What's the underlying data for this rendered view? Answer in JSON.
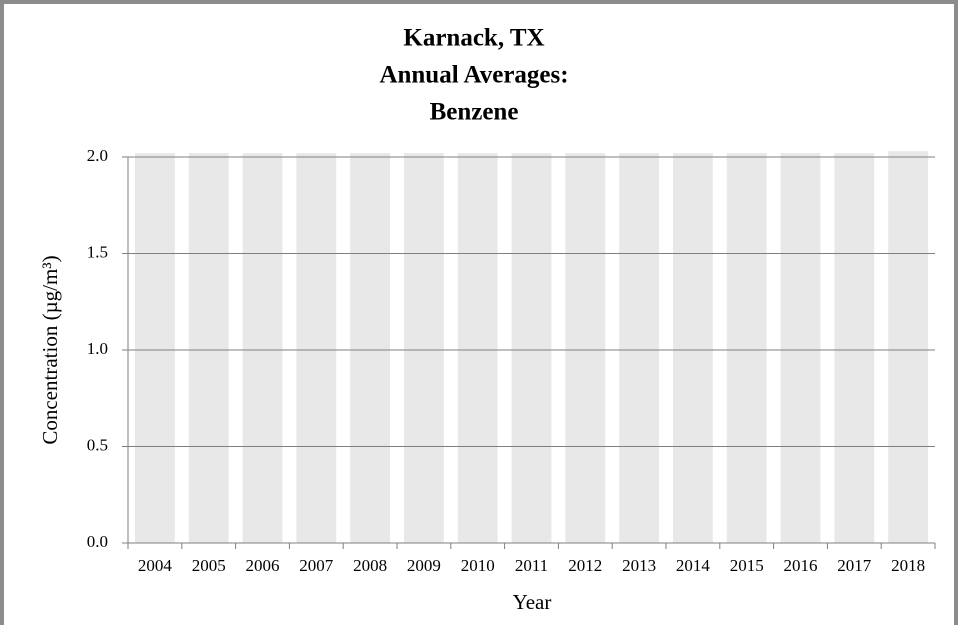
{
  "chart_data": {
    "type": "bar",
    "title": [
      "Karnack, TX",
      "Annual Averages:",
      "Benzene"
    ],
    "x_label": "Year",
    "y_label": "Concentration (µg/m³)",
    "categories": [
      "2004",
      "2005",
      "2006",
      "2007",
      "2008",
      "2009",
      "2010",
      "2011",
      "2012",
      "2013",
      "2014",
      "2015",
      "2016",
      "2017",
      "2018"
    ],
    "values": [
      2.02,
      2.02,
      2.02,
      2.02,
      2.02,
      2.02,
      2.02,
      2.02,
      2.02,
      2.02,
      2.02,
      2.02,
      2.02,
      2.02,
      2.03
    ],
    "color": "#e8e8e8",
    "ylim": [
      0,
      2
    ],
    "yticks": [
      {
        "value": 0,
        "label": "0.0"
      },
      {
        "value": 0.5,
        "label": "0.5"
      },
      {
        "value": 1,
        "label": "1.0"
      },
      {
        "value": 1.5,
        "label": "1.5"
      },
      {
        "value": 2,
        "label": "2.0"
      }
    ],
    "grid": true
  }
}
